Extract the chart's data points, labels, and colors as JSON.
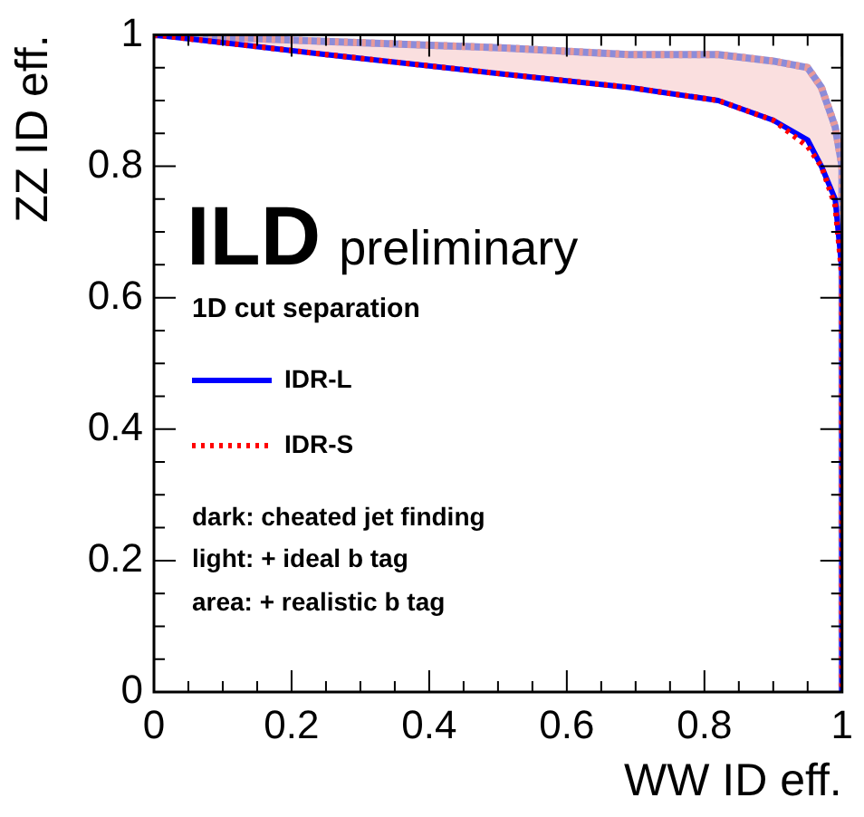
{
  "chart_data": {
    "type": "line",
    "xlabel": "WW ID eff.",
    "ylabel": "ZZ ID eff.",
    "xlim": [
      0,
      1
    ],
    "ylim": [
      0,
      1
    ],
    "xticks": [
      0,
      {
        "value": 0.05,
        "label": null
      },
      {
        "value": 0.1,
        "label": null
      },
      {
        "value": 0.15,
        "label": null
      },
      0.2,
      {
        "value": 0.25,
        "label": null
      },
      {
        "value": 0.3,
        "label": null
      },
      {
        "value": 0.35,
        "label": null
      },
      0.4,
      {
        "value": 0.45,
        "label": null
      },
      {
        "value": 0.5,
        "label": null
      },
      {
        "value": 0.55,
        "label": null
      },
      0.6,
      {
        "value": 0.65,
        "label": null
      },
      {
        "value": 0.7,
        "label": null
      },
      {
        "value": 0.75,
        "label": null
      },
      0.8,
      {
        "value": 0.85,
        "label": null
      },
      {
        "value": 0.9,
        "label": null
      },
      {
        "value": 0.95,
        "label": null
      },
      1
    ],
    "yticks": [
      0,
      {
        "value": 0.05,
        "label": null
      },
      {
        "value": 0.1,
        "label": null
      },
      {
        "value": 0.15,
        "label": null
      },
      0.2,
      {
        "value": 0.25,
        "label": null
      },
      {
        "value": 0.3,
        "label": null
      },
      {
        "value": 0.35,
        "label": null
      },
      0.4,
      {
        "value": 0.45,
        "label": null
      },
      {
        "value": 0.5,
        "label": null
      },
      {
        "value": 0.55,
        "label": null
      },
      0.6,
      {
        "value": 0.65,
        "label": null
      },
      {
        "value": 0.7,
        "label": null
      },
      {
        "value": 0.75,
        "label": null
      },
      0.8,
      {
        "value": 0.85,
        "label": null
      },
      {
        "value": 0.9,
        "label": null
      },
      {
        "value": 0.95,
        "label": null
      },
      1
    ],
    "grid": false,
    "legend": "left",
    "series": [
      {
        "name": "IDR-L",
        "color": "#0000ff",
        "line_style": "solid",
        "x": [
          0,
          0.25,
          0.51,
          0.69,
          0.82,
          0.9,
          0.95,
          0.97,
          0.99,
          1,
          1
        ],
        "values": [
          1,
          0.97,
          0.94,
          0.92,
          0.9,
          0.87,
          0.84,
          0.8,
          0.75,
          0.64,
          0
        ]
      },
      {
        "name": "IDR-S",
        "color": "#ff0000",
        "line_style": "dotted",
        "x": [
          0,
          0.25,
          0.51,
          0.69,
          0.82,
          0.9,
          0.95,
          0.97,
          0.99,
          1,
          1
        ],
        "values": [
          1,
          0.97,
          0.94,
          0.92,
          0.9,
          0.87,
          0.83,
          0.8,
          0.74,
          0.63,
          0
        ]
      },
      {
        "color": "#8c8cd9",
        "line_style": "solid",
        "x": [
          0,
          0.25,
          0.51,
          0.69,
          0.82,
          0.9,
          0.95,
          0.97,
          0.99,
          1,
          1
        ],
        "values": [
          1,
          0.99,
          0.98,
          0.97,
          0.97,
          0.96,
          0.95,
          0.92,
          0.86,
          0.8,
          0
        ],
        "lower": [
          1,
          0.97,
          0.94,
          0.92,
          0.9,
          0.87,
          0.84,
          0.8,
          0.75,
          0.64,
          null
        ],
        "upper": [
          1,
          0.99,
          0.98,
          0.97,
          0.97,
          0.96,
          0.95,
          0.92,
          0.86,
          0.8,
          null
        ]
      },
      {
        "color": "#e89a9a",
        "line_style": "dotted",
        "x": [
          0,
          0.25,
          0.51,
          0.69,
          0.82,
          0.9,
          0.95,
          0.97,
          0.99,
          1,
          1
        ],
        "values": [
          1,
          0.99,
          0.98,
          0.97,
          0.97,
          0.96,
          0.95,
          0.92,
          0.86,
          0.8,
          0
        ]
      }
    ],
    "annotations": [
      "ILD",
      "preliminary",
      "1D cut separation",
      "dark: cheated jet finding",
      "light: + ideal b tag",
      "area: + realistic b tag"
    ]
  }
}
